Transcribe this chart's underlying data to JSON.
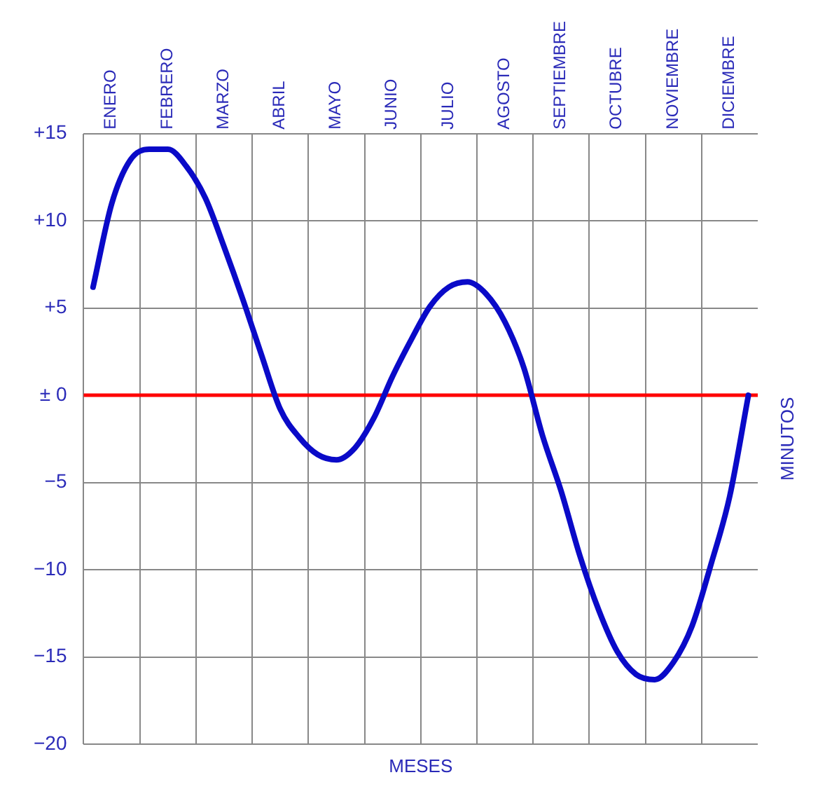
{
  "chart_data": {
    "type": "line",
    "xlabel": "MESES",
    "ylabel": "MINUTOS",
    "categories": [
      null,
      "ENERO",
      null,
      null,
      "FEBRERO",
      null,
      null,
      "MARZO",
      null,
      null,
      "ABRIL",
      null,
      null,
      "MAYO",
      null,
      null,
      "JUNIO",
      null,
      null,
      "JULIO",
      null,
      null,
      "AGOSTO",
      null,
      null,
      "SEPTIEMBRE",
      null,
      null,
      "OCTUBRE",
      null,
      null,
      "NOVIEMBRE",
      null,
      null,
      "DICIEMBRE",
      null
    ],
    "series": [
      {
        "color": "#0a0ac8",
        "values": [
          6.2,
          11.0,
          13.5,
          14.1,
          14.1,
          13.1,
          11.3,
          8.5,
          5.5,
          2.3,
          -0.8,
          -2.4,
          -3.4,
          -3.7,
          -3.0,
          -1.3,
          1.1,
          3.2,
          5.1,
          6.2,
          6.5,
          5.8,
          4.2,
          1.6,
          -2.3,
          -5.5,
          -9.2,
          -12.3,
          -14.7,
          -16.0,
          -16.3,
          -15.3,
          -13.2,
          -9.7,
          -5.8,
          0
        ]
      }
    ],
    "ylim": [
      -20,
      15
    ],
    "yticks": [
      {
        "value": 15,
        "label": "+15"
      },
      {
        "value": 10,
        "label": "+10"
      },
      {
        "value": 5,
        "label": "+5"
      },
      {
        "value": 0,
        "label": "± 0"
      },
      {
        "value": -5,
        "label": "−5"
      },
      {
        "value": -10,
        "label": "−10"
      },
      {
        "value": -15,
        "label": "−15"
      },
      {
        "value": -20,
        "label": "−20"
      }
    ],
    "ref_lines": [
      {
        "axis": "y",
        "value": 0,
        "color": "#ff0000"
      }
    ],
    "grid": true,
    "legend": false,
    "marker": "none",
    "line_style": "solid"
  }
}
